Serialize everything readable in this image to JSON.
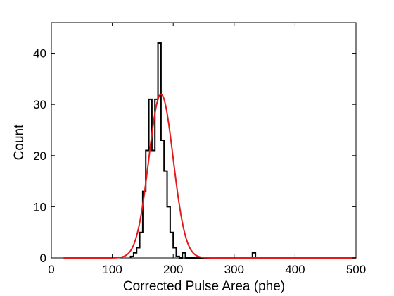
{
  "chart_data": {
    "type": "line",
    "title": "",
    "xlabel": "Corrected Pulse Area (phe)",
    "ylabel": "Count",
    "xlim": [
      0,
      500
    ],
    "ylim": [
      0,
      46
    ],
    "xticks": [
      0,
      100,
      200,
      300,
      400,
      500
    ],
    "yticks": [
      0,
      10,
      20,
      30,
      40
    ],
    "grid": false,
    "legend": "none",
    "series": [
      {
        "kind": "step-histogram",
        "color": "#000000",
        "bin_width": 5,
        "bin_edges_start": 130,
        "counts": [
          0.3,
          1,
          2,
          5,
          13,
          21,
          31,
          21,
          31,
          42,
          23,
          17,
          10,
          5,
          2,
          0.3,
          0,
          1,
          0,
          0,
          0,
          0,
          0,
          0,
          0,
          0,
          0,
          0,
          0,
          0,
          0,
          0,
          0,
          0,
          0,
          0,
          0,
          0,
          0,
          0,
          1
        ]
      },
      {
        "kind": "gaussian-fit",
        "color": "#e41a1c",
        "amplitude": 32,
        "mean": 180,
        "sigma": 20,
        "x_range": [
          20,
          500
        ]
      }
    ]
  },
  "colors": {
    "histogram": "#000000",
    "fit": "#e41a1c"
  }
}
